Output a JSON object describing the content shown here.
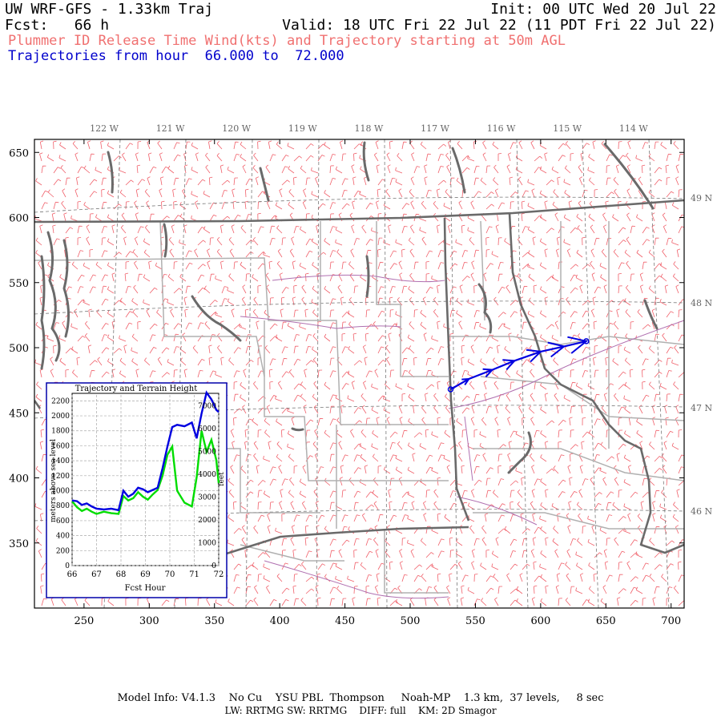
{
  "header": {
    "title": "UW WRF-GFS - 1.33km Traj",
    "init": "Init: 00 UTC Wed 20 Jul 22",
    "fcst": "Fcst:   66 h",
    "valid": "Valid: 18 UTC Fri 22 Jul 22 (11 PDT Fri 22 Jul 22)",
    "subtitle": "Plummer ID Release Time Wind(kts) and Trajectory starting at 50m AGL",
    "trajectory_range": "Trajectories from hour  66.000 to  72.000"
  },
  "colors": {
    "wind_barbs": "#f0606a",
    "trajectory": "#0000e0",
    "subtitle": "#f07070",
    "trajectory_text": "#0000cc",
    "borders": "#666666",
    "county_lines": "#b0b0b0",
    "rivers": "#b070b0",
    "terrain_line": "#00dd00"
  },
  "map": {
    "x_axis_ticks": [
      "250",
      "300",
      "350",
      "400",
      "450",
      "500",
      "550",
      "600",
      "650",
      "700"
    ],
    "y_axis_ticks": [
      "650",
      "600",
      "550",
      "500",
      "450",
      "400",
      "350"
    ],
    "lon_labels": [
      "122 W",
      "121 W",
      "120 W",
      "119 W",
      "118 W",
      "117 W",
      "116 W",
      "115 W",
      "114 W"
    ],
    "lat_labels": [
      "49 N",
      "48 N",
      "47 N",
      "46 N"
    ],
    "trajectory_grid_points": [
      [
        531,
        468
      ],
      [
        545,
        476
      ],
      [
        563,
        483
      ],
      [
        580,
        490
      ],
      [
        600,
        497
      ],
      [
        618,
        501
      ],
      [
        635,
        505
      ]
    ]
  },
  "inset": {
    "title": "Trajectory and Terrain Height",
    "xlabel": "Fcst Hour",
    "ylabel_left": "meters above sea level",
    "ylabel_right": "feet",
    "x_ticks": [
      "66",
      "67",
      "68",
      "69",
      "70",
      "71",
      "72"
    ],
    "y_ticks_left": [
      "0",
      "200",
      "400",
      "600",
      "800",
      "1000",
      "1200",
      "1400",
      "1600",
      "1800",
      "2000",
      "2200"
    ],
    "y_ticks_right": [
      "0",
      "1000",
      "2000",
      "3000",
      "4000",
      "5000",
      "6000",
      "7000"
    ]
  },
  "chart_data": {
    "type": "line",
    "title": "Trajectory and Terrain Height",
    "xlabel": "Fcst Hour",
    "ylabel": "meters above sea level",
    "xlim": [
      66,
      72
    ],
    "ylim": [
      0,
      2300
    ],
    "series": [
      {
        "name": "trajectory",
        "x": [
          66.0,
          66.2,
          66.4,
          66.6,
          66.8,
          67.0,
          67.3,
          67.6,
          67.9,
          68.1,
          68.3,
          68.5,
          68.7,
          68.9,
          69.1,
          69.3,
          69.5,
          69.7,
          69.9,
          70.1,
          70.3,
          70.6,
          70.9,
          71.1,
          71.3,
          71.5,
          71.7,
          71.9,
          72.0
        ],
        "values": [
          870,
          860,
          810,
          830,
          790,
          760,
          750,
          760,
          740,
          1000,
          920,
          960,
          1040,
          1020,
          980,
          1010,
          1040,
          1300,
          1590,
          1850,
          1880,
          1860,
          1910,
          1700,
          2030,
          2310,
          2220,
          2080,
          2050
        ]
      },
      {
        "name": "terrain",
        "x": [
          66.0,
          66.2,
          66.4,
          66.6,
          66.8,
          67.0,
          67.3,
          67.6,
          67.9,
          68.1,
          68.3,
          68.5,
          68.7,
          68.9,
          69.1,
          69.3,
          69.5,
          69.7,
          69.9,
          70.1,
          70.3,
          70.6,
          70.9,
          71.1,
          71.3,
          71.5,
          71.7,
          71.9,
          72.0
        ],
        "values": [
          860,
          780,
          730,
          760,
          720,
          690,
          720,
          700,
          690,
          930,
          870,
          900,
          980,
          920,
          880,
          950,
          1010,
          1200,
          1480,
          1590,
          1000,
          840,
          790,
          1180,
          1800,
          1520,
          1680,
          1410,
          1100
        ]
      }
    ]
  }
}
